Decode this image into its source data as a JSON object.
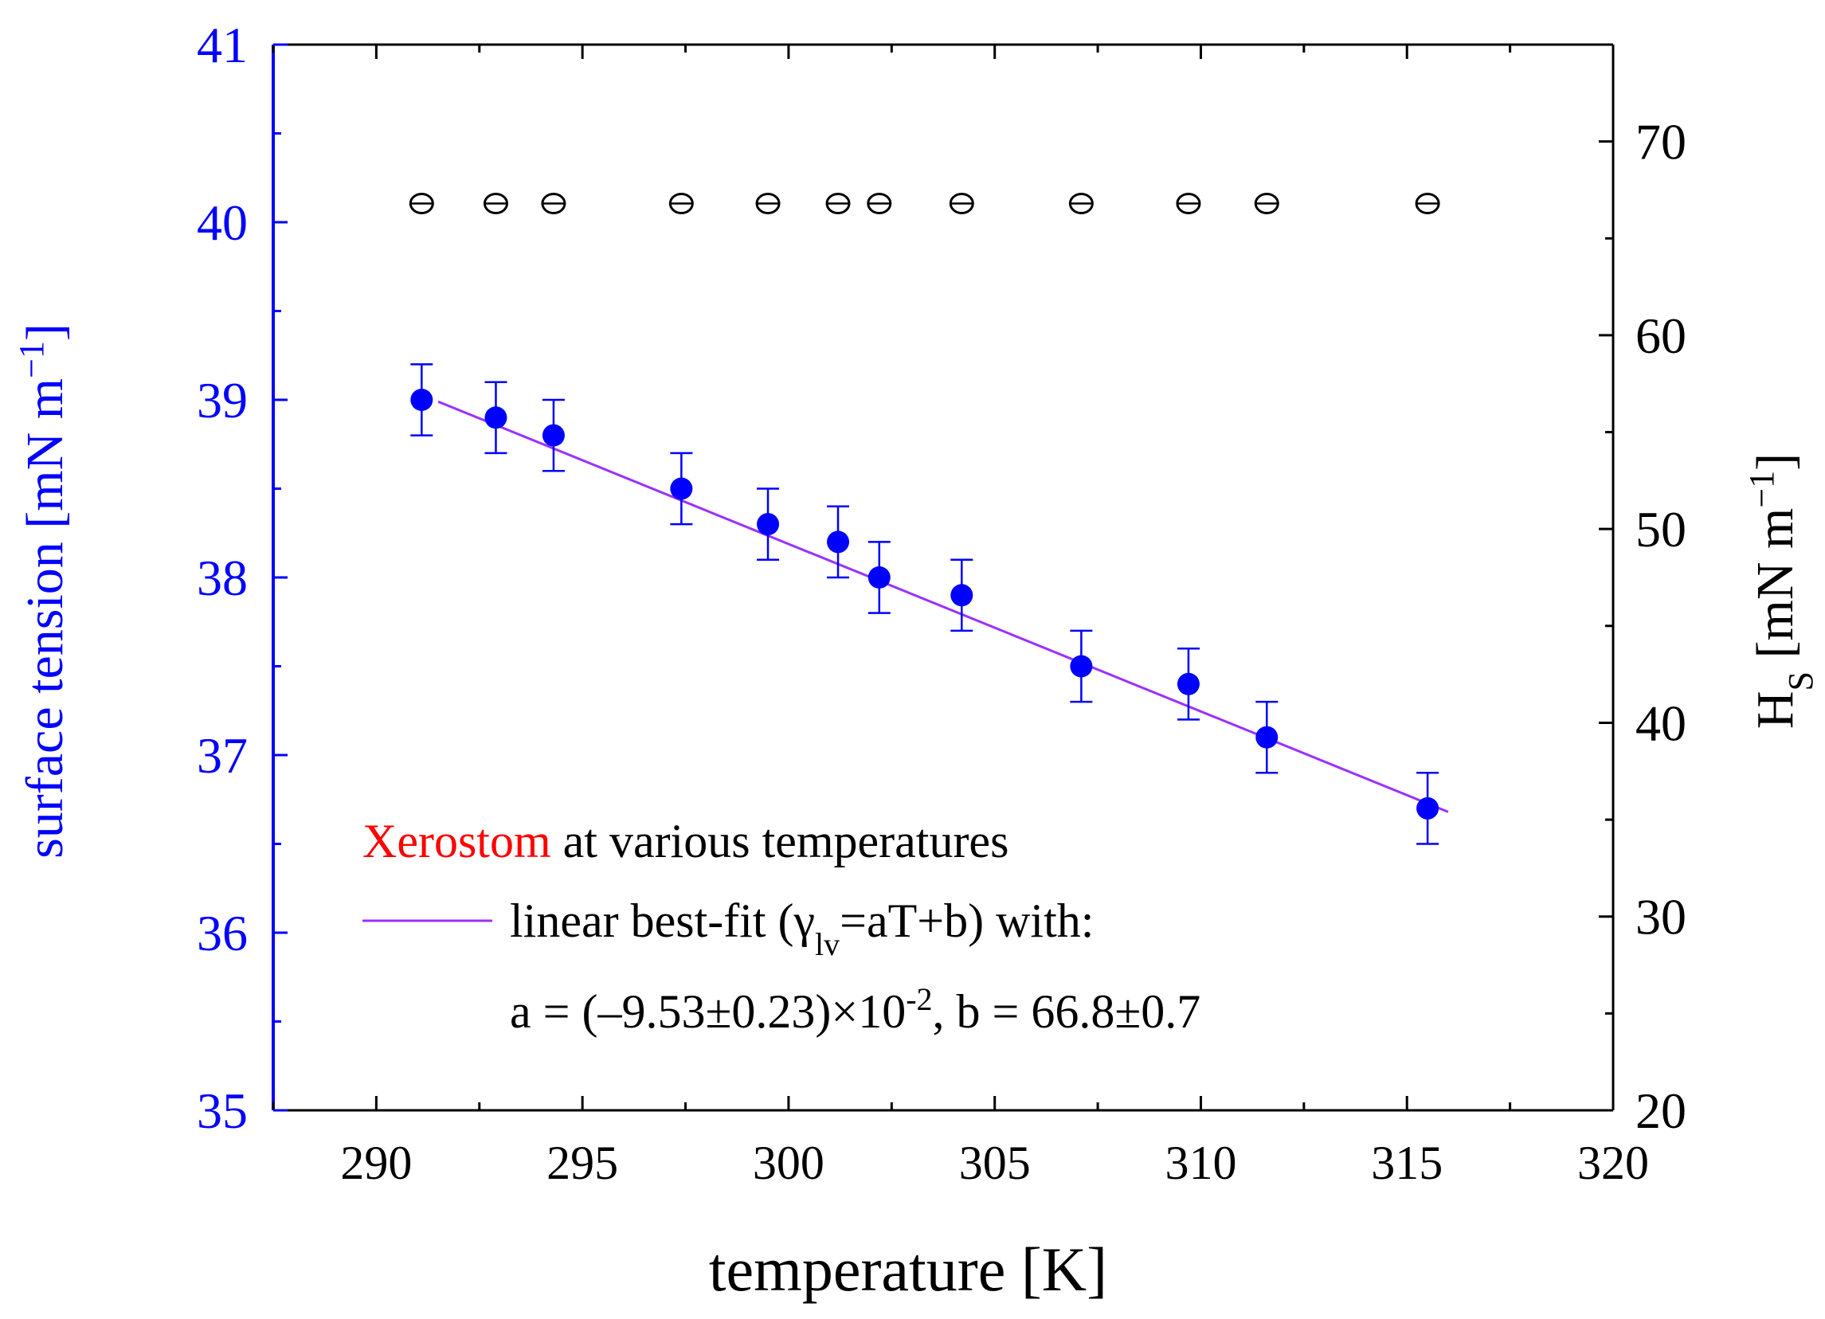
{
  "chart_data": {
    "type": "scatter",
    "xlabel": "temperature [K]",
    "xlim": [
      287.5,
      320
    ],
    "xticks": [
      290,
      295,
      300,
      305,
      310,
      315,
      320
    ],
    "left_axis": {
      "label": "surface tension [mN m",
      "label_sup": "−1",
      "label_end": "]",
      "color": "#0000ff",
      "ylim": [
        35,
        41
      ],
      "ticks": [
        35,
        36,
        37,
        38,
        39,
        40,
        41
      ]
    },
    "right_axis": {
      "label": "H",
      "label_sub": "S",
      "label_mid": " [mN m",
      "label_sup": "−1",
      "label_end": "]",
      "color": "#000000",
      "ylim": [
        20,
        75
      ],
      "ticks": [
        20,
        30,
        40,
        50,
        60,
        70
      ]
    },
    "series": [
      {
        "name": "surface tension",
        "axis": "left",
        "marker": "filled-circle",
        "color": "#0000ff",
        "x": [
          291.1,
          292.9,
          294.3,
          297.4,
          299.5,
          301.2,
          302.2,
          304.2,
          307.1,
          309.7,
          311.6,
          315.5
        ],
        "y": [
          39.0,
          38.9,
          38.8,
          38.5,
          38.3,
          38.2,
          38.0,
          37.9,
          37.5,
          37.4,
          37.1,
          36.7
        ],
        "yerr": [
          0.2,
          0.2,
          0.2,
          0.2,
          0.2,
          0.2,
          0.2,
          0.2,
          0.2,
          0.2,
          0.2,
          0.2
        ]
      },
      {
        "name": "H_S",
        "axis": "right",
        "marker": "open-circle",
        "color": "#000000",
        "x": [
          291.1,
          292.9,
          294.3,
          297.4,
          299.5,
          301.2,
          302.2,
          304.2,
          307.1,
          309.7,
          311.6,
          315.5
        ],
        "y": [
          66.8,
          66.8,
          66.8,
          66.8,
          66.8,
          66.8,
          66.8,
          66.8,
          66.8,
          66.8,
          66.8,
          66.8
        ]
      }
    ],
    "fit": {
      "name": "linear best-fit",
      "color": "#9b30ff",
      "axis": "left",
      "x": [
        291.5,
        316.0
      ],
      "y": [
        38.99,
        36.68
      ]
    },
    "legend": {
      "title_highlight": "Xerostom",
      "title_highlight_color": "#ff0000",
      "title_rest": " at various temperatures",
      "fit_text": "linear best-fit (γ",
      "fit_sub": "lv",
      "fit_text_end": "=aT+b) with:",
      "params_text": "a = (–9.53±0.23)×10",
      "params_sup": "-2",
      "params_text_end": ", b = 66.8±0.7"
    }
  }
}
